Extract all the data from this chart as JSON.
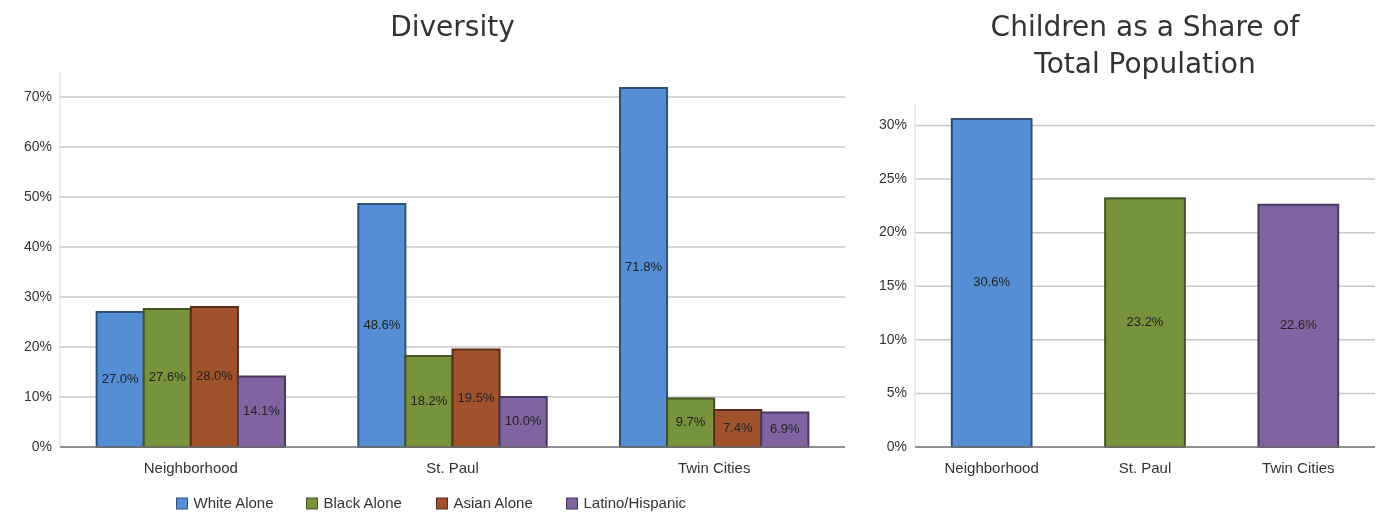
{
  "chart_data": [
    {
      "type": "bar",
      "title": "Diversity",
      "categories": [
        "Neighborhood",
        "St. Paul",
        "Twin Cities"
      ],
      "series": [
        {
          "name": "White Alone",
          "color": "#558ed5",
          "values": [
            27.0,
            48.6,
            71.8
          ],
          "value_labels": [
            "27.0%",
            "48.6%",
            "71.8%"
          ]
        },
        {
          "name": "Black Alone",
          "color": "#77933c",
          "values": [
            27.6,
            18.2,
            9.7
          ],
          "value_labels": [
            "27.6%",
            "18.2%",
            "9.7%"
          ]
        },
        {
          "name": "Asian Alone",
          "color": "#a0522d",
          "values": [
            28.0,
            19.5,
            7.4
          ],
          "value_labels": [
            "28.0%",
            "19.5%",
            "7.4%"
          ]
        },
        {
          "name": "Latino/Hispanic",
          "color": "#8064a2",
          "values": [
            14.1,
            10.0,
            6.9
          ],
          "value_labels": [
            "14.1%",
            "10.0%",
            "6.9%"
          ]
        }
      ],
      "ylim": [
        0,
        75
      ],
      "yticks": [
        {
          "value": 0,
          "label": "0%"
        },
        {
          "value": 10,
          "label": "10%"
        },
        {
          "value": 20,
          "label": "20%"
        },
        {
          "value": 30,
          "label": "30%"
        },
        {
          "value": 40,
          "label": "40%"
        },
        {
          "value": 50,
          "label": "50%"
        },
        {
          "value": 60,
          "label": "60%"
        },
        {
          "value": 70,
          "label": "70%"
        }
      ],
      "grid": "y",
      "legend": "bottom"
    },
    {
      "type": "bar",
      "title": "Children as a Share of Total Population",
      "categories": [
        "Neighborhood",
        "St. Paul",
        "Twin Cities"
      ],
      "values": [
        30.6,
        23.2,
        22.6
      ],
      "colors": [
        "#558ed5",
        "#77933c",
        "#8064a2"
      ],
      "value_labels": [
        "30.6%",
        "23.2%",
        "22.6%"
      ],
      "ylim": [
        0,
        32
      ],
      "yticks": [
        {
          "value": 0,
          "label": "0%"
        },
        {
          "value": 5,
          "label": "5%"
        },
        {
          "value": 10,
          "label": "10%"
        },
        {
          "value": 15,
          "label": "15%"
        },
        {
          "value": 20,
          "label": "20%"
        },
        {
          "value": 25,
          "label": "25%"
        },
        {
          "value": 30,
          "label": "30%"
        }
      ],
      "grid": "y",
      "legend": false
    }
  ]
}
